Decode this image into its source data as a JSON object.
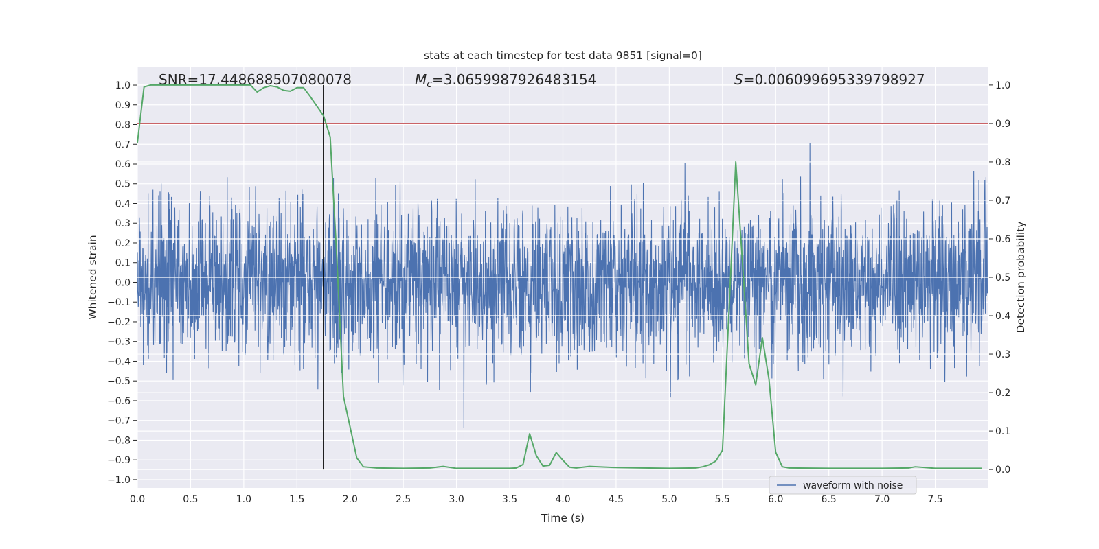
{
  "chart_data": {
    "type": "line",
    "title": "stats at each timestep for test data 9851 [signal=0]",
    "xlabel": "Time (s)",
    "ylabel": "Whitened strain",
    "ylabel_right": "Detection probability",
    "xlim": [
      0,
      8.0
    ],
    "ylim": [
      -1.042,
      1.094
    ],
    "ylim_right": [
      -0.048,
      1.048
    ],
    "xticks": [
      "0.0",
      "0.5",
      "1.0",
      "1.5",
      "2.0",
      "2.5",
      "3.0",
      "3.5",
      "4.0",
      "4.5",
      "5.0",
      "5.5",
      "6.0",
      "6.5",
      "7.0",
      "7.5"
    ],
    "yticks": [
      "−1.0",
      "−0.9",
      "−0.8",
      "−0.7",
      "−0.6",
      "−0.5",
      "−0.4",
      "−0.3",
      "−0.2",
      "−0.1",
      "0.0",
      "0.1",
      "0.2",
      "0.3",
      "0.4",
      "0.5",
      "0.6",
      "0.7",
      "0.8",
      "0.9",
      "1.0"
    ],
    "yticks_right": [
      "0.0",
      "0.1",
      "0.2",
      "0.3",
      "0.4",
      "0.5",
      "0.6",
      "0.7",
      "0.8",
      "0.9",
      "1.0"
    ],
    "grid": true,
    "legend": {
      "placement": "lower-right",
      "entries": [
        "waveform with noise"
      ]
    },
    "annotations": {
      "snr": "SNR=17.448688507080078",
      "mc_symbol": "M",
      "mc_subscript": "c",
      "mc_value": "=3.0659987926483154",
      "s_symbol": "S",
      "s_value": "=0.006099695339798927"
    },
    "threshold": {
      "value": 0.9,
      "axis": "right",
      "color": "#C44E52"
    },
    "marker_time": {
      "value": 1.75,
      "color": "#000000"
    },
    "series": [
      {
        "name": "waveform with noise",
        "axis": "left",
        "color": "#4C72B0",
        "generator": {
          "kind": "seeded-gaussian-noise",
          "seed": 9851,
          "sigma": 0.2,
          "n_samples": 3000,
          "t_start": 0.0,
          "t_end": 7.99
        }
      },
      {
        "name": "detection probability",
        "axis": "right",
        "color": "#55A868",
        "x": [
          0.0,
          0.0625,
          0.125,
          0.25,
          0.5,
          0.75,
          1.0,
          1.0625,
          1.125,
          1.1875,
          1.25,
          1.3125,
          1.375,
          1.4375,
          1.5,
          1.5625,
          1.625,
          1.6875,
          1.75,
          1.8125,
          1.875,
          1.9375,
          2.0,
          2.0625,
          2.125,
          2.25,
          2.5,
          2.75,
          2.875,
          3.0,
          3.25,
          3.5,
          3.5625,
          3.625,
          3.6875,
          3.75,
          3.8125,
          3.875,
          3.9375,
          4.0,
          4.0625,
          4.125,
          4.25,
          4.5,
          4.75,
          5.0,
          5.25,
          5.3125,
          5.375,
          5.4375,
          5.5,
          5.5625,
          5.625,
          5.6875,
          5.75,
          5.8125,
          5.875,
          5.9375,
          6.0,
          6.0625,
          6.125,
          6.5,
          6.75,
          7.0,
          7.25,
          7.3125,
          7.5,
          7.9375
        ],
        "y": [
          0.85,
          0.995,
          1.0,
          1.0,
          1.0,
          1.0,
          1.0,
          1.0,
          0.982,
          0.993,
          0.998,
          0.995,
          0.986,
          0.984,
          0.993,
          0.993,
          0.97,
          0.945,
          0.92,
          0.865,
          0.55,
          0.19,
          0.11,
          0.03,
          0.007,
          0.004,
          0.003,
          0.004,
          0.008,
          0.003,
          0.003,
          0.003,
          0.004,
          0.013,
          0.093,
          0.036,
          0.009,
          0.011,
          0.044,
          0.024,
          0.006,
          0.004,
          0.008,
          0.005,
          0.004,
          0.003,
          0.004,
          0.007,
          0.012,
          0.022,
          0.05,
          0.42,
          0.8,
          0.54,
          0.275,
          0.22,
          0.343,
          0.234,
          0.045,
          0.007,
          0.004,
          0.003,
          0.003,
          0.003,
          0.004,
          0.007,
          0.003,
          0.003
        ]
      }
    ]
  }
}
